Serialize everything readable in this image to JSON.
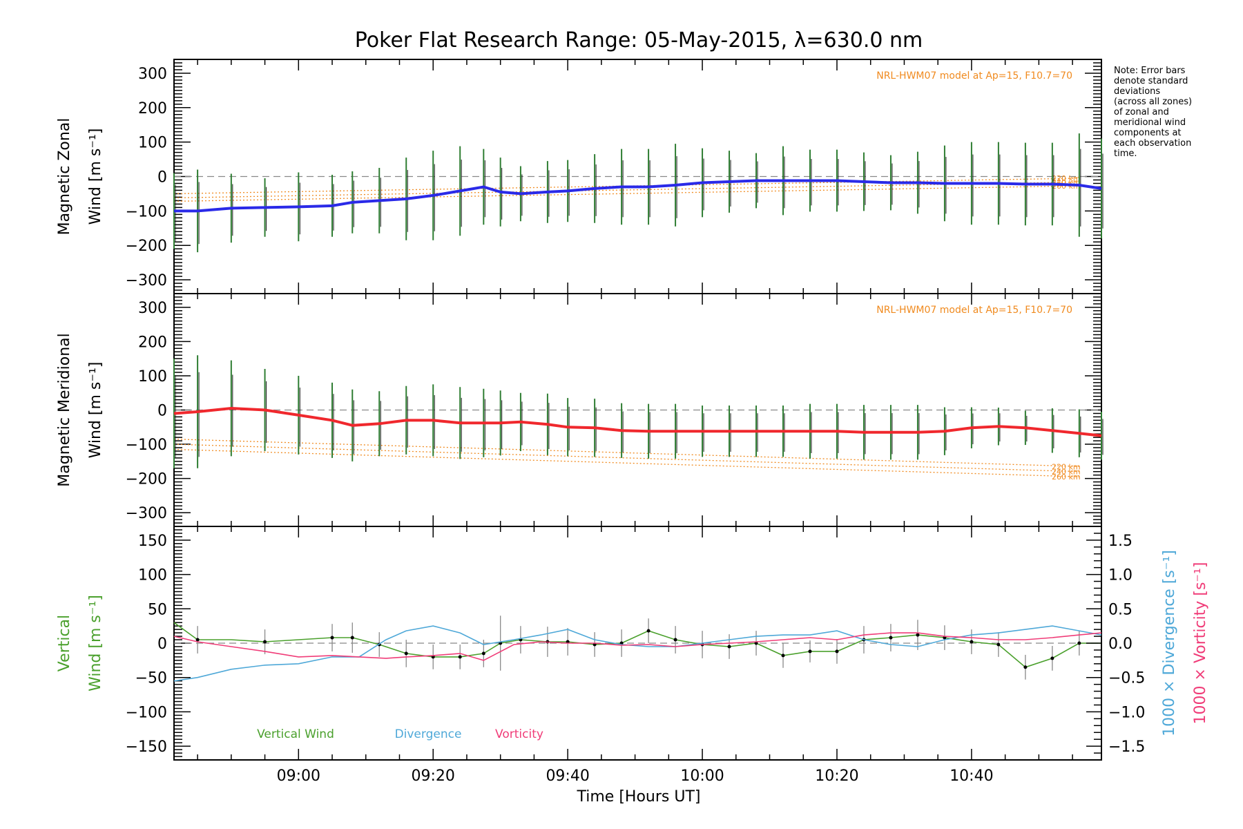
{
  "chart_data": {
    "type": "line",
    "title": "Poker Flat Research Range: 05-May-2015, λ=630.0 nm",
    "xlabel": "Time [Hours UT]",
    "x_tick_labels": [
      "09:00",
      "09:20",
      "09:40",
      "10:00",
      "10:20",
      "10:40"
    ],
    "x_tick_minutes": [
      540,
      560,
      580,
      600,
      620,
      640
    ],
    "x_range_minutes": [
      521.5,
      659.3
    ],
    "note": [
      "Note: Error bars",
      "denote standard",
      "deviations",
      "(across all zones)",
      "of zonal and",
      "meridional wind",
      "components at",
      "each observation",
      "time."
    ],
    "panels": [
      {
        "name": "zonal",
        "ylabel_lines": [
          "Magnetic Zonal",
          "Wind [m s⁻¹]"
        ],
        "ylim": [
          -340,
          340
        ],
        "yticks": [
          300,
          200,
          100,
          0,
          -100,
          -200,
          -300
        ],
        "model_label": "NRL-HWM07 model at Ap=15, F10.7=70",
        "altitude_labels": [
          "220 km",
          "240 km",
          "260 km"
        ],
        "model_lines": [
          {
            "name": "220 km",
            "start": -50,
            "end": -5
          },
          {
            "name": "240 km",
            "start": -62,
            "end": -16
          },
          {
            "name": "260 km",
            "start": -72,
            "end": -27
          }
        ],
        "series": [
          {
            "color": "#2a2ae8",
            "x": [
              521.5,
              525,
              530,
              535,
              540,
              545,
              548,
              552,
              556,
              560,
              564,
              567.5,
              570,
              573,
              577,
              580,
              584,
              588,
              592,
              596,
              600,
              604,
              608,
              612,
              616,
              620,
              624,
              628,
              632,
              636,
              640,
              644,
              648,
              652,
              656,
              659.3
            ],
            "y": [
              -100,
              -100,
              -92,
              -90,
              -88,
              -85,
              -75,
              -70,
              -65,
              -55,
              -42,
              -30,
              -45,
              -50,
              -45,
              -42,
              -35,
              -30,
              -30,
              -25,
              -18,
              -15,
              -12,
              -12,
              -12,
              -12,
              -15,
              -18,
              -18,
              -20,
              -20,
              -20,
              -22,
              -22,
              -25,
              -35
            ],
            "err": [
              110,
              120,
              100,
              85,
              100,
              90,
              90,
              95,
              120,
              130,
              130,
              110,
              100,
              80,
              90,
              90,
              100,
              110,
              110,
              120,
              100,
              90,
              80,
              100,
              90,
              90,
              85,
              80,
              90,
              110,
              120,
              120,
              120,
              120,
              150,
              145
            ]
          }
        ]
      },
      {
        "name": "meridional",
        "ylabel_lines": [
          "Magnetic Meridional",
          "Wind [m s⁻¹]"
        ],
        "ylim": [
          -340,
          340
        ],
        "yticks": [
          300,
          200,
          100,
          0,
          -100,
          -200,
          -300
        ],
        "model_label": "NRL-HWM07 model at Ap=15, F10.7=70",
        "altitude_labels": [
          "220 km",
          "240 km",
          "260 km"
        ],
        "model_lines": [
          {
            "name": "220 km",
            "start": -85,
            "end": -165
          },
          {
            "name": "240 km",
            "start": -100,
            "end": -180
          },
          {
            "name": "260 km",
            "start": -115,
            "end": -195
          }
        ],
        "series": [
          {
            "color": "#f0282d",
            "x": [
              521.5,
              525,
              530,
              535,
              540,
              545,
              548,
              552,
              556,
              560,
              564,
              567.5,
              570,
              573,
              577,
              580,
              584,
              588,
              592,
              596,
              600,
              604,
              608,
              612,
              616,
              620,
              624,
              628,
              632,
              636,
              640,
              644,
              648,
              652,
              656,
              659.3
            ],
            "y": [
              -10,
              -5,
              5,
              0,
              -15,
              -30,
              -45,
              -40,
              -30,
              -30,
              -38,
              -38,
              -38,
              -35,
              -42,
              -50,
              -52,
              -60,
              -62,
              -62,
              -62,
              -62,
              -62,
              -62,
              -62,
              -62,
              -65,
              -65,
              -65,
              -62,
              -52,
              -48,
              -52,
              -60,
              -68,
              -75
            ],
            "err": [
              160,
              165,
              140,
              120,
              115,
              110,
              105,
              95,
              100,
              105,
              105,
              100,
              95,
              85,
              90,
              85,
              85,
              80,
              80,
              80,
              75,
              75,
              75,
              75,
              80,
              80,
              80,
              80,
              80,
              70,
              60,
              55,
              50,
              65,
              70,
              70
            ]
          }
        ]
      },
      {
        "name": "vertical",
        "ylabel_left_lines": [
          "Vertical",
          "Wind [m s⁻¹]"
        ],
        "ylabel_right": [
          "1000 × Divergence [s⁻¹]",
          "1000 × Vorticity [s⁻¹]"
        ],
        "ylim": [
          -170,
          170
        ],
        "yticks": [
          150,
          100,
          50,
          0,
          -50,
          -100,
          -150
        ],
        "ylim_right": [
          -1.7,
          1.7
        ],
        "yticks_right": [
          "1.5",
          "1.0",
          "0.5",
          "0.0",
          "−0.5",
          "−1.0",
          "−1.5"
        ],
        "yticks_right_values": [
          1.5,
          1.0,
          0.5,
          0.0,
          -0.5,
          -1.0,
          -1.5
        ],
        "legend": [
          "Vertical Wind",
          "Divergence",
          "Vorticity"
        ],
        "series": [
          {
            "name": "Vertical Wind",
            "color": "#4aa02c",
            "axis": "left",
            "x": [
              521.5,
              525,
              530,
              535,
              540,
              545,
              548,
              552,
              556,
              560,
              564,
              567.5,
              570,
              573,
              577,
              580,
              584,
              588,
              592,
              596,
              600,
              604,
              608,
              612,
              616,
              620,
              624,
              628,
              632,
              636,
              640,
              644,
              648,
              652,
              656,
              659.3
            ],
            "y": [
              30,
              5,
              5,
              2,
              5,
              8,
              8,
              -2,
              -15,
              -20,
              -20,
              -15,
              0,
              5,
              2,
              2,
              -2,
              0,
              18,
              5,
              -2,
              -5,
              0,
              -18,
              -12,
              -12,
              5,
              8,
              12,
              8,
              2,
              -2,
              -35,
              -22,
              0,
              0
            ],
            "err": [
              0,
              20,
              0,
              18,
              0,
              20,
              22,
              18,
              20,
              18,
              18,
              20,
              40,
              20,
              22,
              20,
              18,
              20,
              18,
              20,
              20,
              18,
              18,
              18,
              16,
              18,
              20,
              20,
              22,
              18,
              18,
              18,
              18,
              18,
              18,
              0
            ]
          },
          {
            "name": "Divergence",
            "color": "#4ea8d8",
            "axis": "right",
            "x": [
              521.5,
              525,
              530,
              535,
              540,
              545,
              549,
              553,
              556,
              560,
              564,
              567.5,
              572,
              576,
              580,
              584,
              588,
              592,
              596,
              600,
              604,
              608,
              612,
              616,
              620,
              624,
              628,
              632,
              636,
              640,
              644,
              648,
              652,
              656,
              659.3
            ],
            "y": [
              -0.55,
              -0.5,
              -0.38,
              -0.32,
              -0.3,
              -0.2,
              -0.2,
              0.05,
              0.18,
              0.25,
              0.15,
              -0.02,
              0.05,
              0.12,
              0.2,
              0.05,
              -0.02,
              -0.05,
              -0.05,
              0.0,
              0.05,
              0.1,
              0.12,
              0.12,
              0.18,
              0.05,
              -0.02,
              -0.05,
              0.05,
              0.12,
              0.15,
              0.2,
              0.25,
              0.18,
              0.12
            ]
          },
          {
            "name": "Vorticity",
            "color": "#f03c78",
            "axis": "right",
            "x": [
              521.5,
              525,
              530,
              535,
              540,
              545,
              549,
              553,
              556,
              560,
              564,
              567.5,
              572,
              576,
              580,
              584,
              588,
              592,
              596,
              600,
              604,
              608,
              612,
              616,
              620,
              624,
              628,
              632,
              636,
              640,
              644,
              648,
              652,
              656,
              659.3
            ],
            "y": [
              0.1,
              0.02,
              -0.05,
              -0.12,
              -0.2,
              -0.18,
              -0.2,
              -0.22,
              -0.2,
              -0.18,
              -0.15,
              -0.25,
              -0.02,
              0.02,
              0.0,
              0.0,
              -0.03,
              -0.02,
              -0.05,
              -0.02,
              0.0,
              0.02,
              0.05,
              0.08,
              0.05,
              0.12,
              0.15,
              0.15,
              0.1,
              0.08,
              0.05,
              0.05,
              0.08,
              0.12,
              0.15
            ]
          }
        ]
      }
    ]
  }
}
